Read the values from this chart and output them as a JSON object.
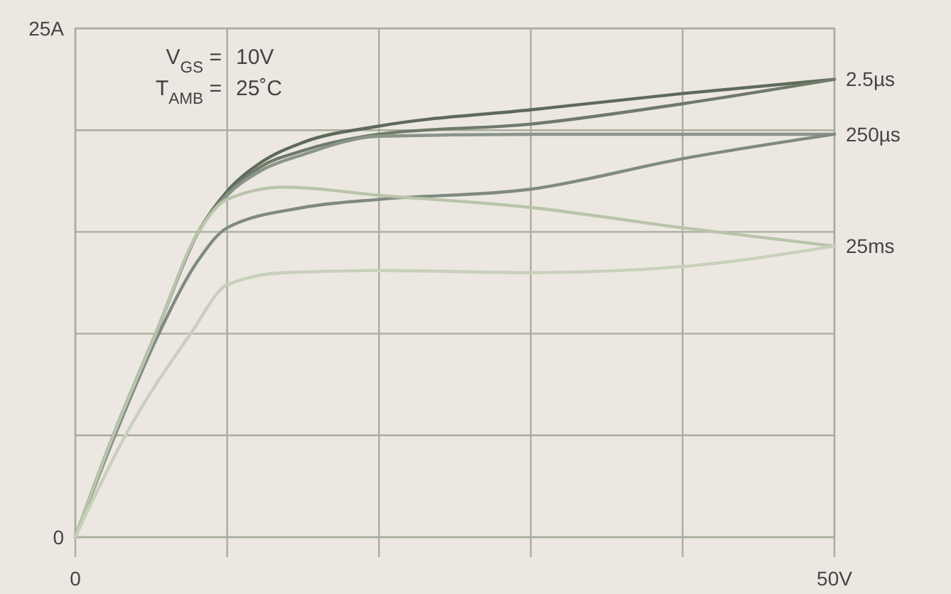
{
  "chart_data": {
    "type": "line",
    "xlim": [
      0,
      50
    ],
    "ylim": [
      0,
      25
    ],
    "xticks": [
      0,
      {
        "value": 10,
        "label": null
      },
      {
        "value": 20,
        "label": null
      },
      {
        "value": 30,
        "label": null
      },
      {
        "value": 40,
        "label": null
      },
      {
        "value": 50,
        "label": "50V"
      }
    ],
    "yticks": [
      0,
      {
        "value": 5,
        "label": null
      },
      {
        "value": 10,
        "label": null
      },
      {
        "value": 15,
        "label": null
      },
      {
        "value": 20,
        "label": null
      },
      {
        "value": 25,
        "label": "25A"
      }
    ],
    "grid": true,
    "marker": "none",
    "line_style": "solid",
    "annotations": [
      "V$_{GS}$ = 10V",
      "T$_{AMB}$ = 25˚C"
    ],
    "series": [
      {
        "name": "2.5µs",
        "color": "#5e6a58",
        "x": [
          0,
          2.5,
          5.3,
          8.1,
          10,
          12.2,
          15,
          20,
          30,
          40,
          50
        ],
        "values": [
          0,
          5,
          10,
          15,
          17,
          18.4,
          19.4,
          20.2,
          21,
          21.8,
          22.5
        ]
      },
      {
        "color": "#6f7a68",
        "x": [
          0,
          2.5,
          5.3,
          8.1,
          10,
          12.2,
          15,
          20,
          30,
          40,
          50
        ],
        "values": [
          0,
          5,
          10,
          15,
          16.9,
          18.2,
          19,
          19.8,
          20.3,
          21.3,
          22.5
        ]
      },
      {
        "name": "250µs",
        "color": "#8a948a",
        "x": [
          0,
          2.5,
          5.3,
          8.1,
          10,
          12.2,
          15,
          20,
          30,
          40,
          50
        ],
        "values": [
          0,
          5,
          10,
          15,
          16.8,
          18,
          18.8,
          19.7,
          19.8,
          19.8,
          19.8
        ]
      },
      {
        "color": "#7f8a80",
        "x": [
          0,
          2.5,
          5.5,
          8,
          10,
          15,
          20,
          30,
          40,
          50
        ],
        "values": [
          0,
          4.8,
          10,
          13.5,
          15.2,
          16.2,
          16.6,
          17.1,
          18.6,
          19.8
        ]
      },
      {
        "name": "25ms",
        "color": "#b9c4aa",
        "x": [
          0,
          2.5,
          5.3,
          8.1,
          10,
          13.8,
          20,
          30,
          40,
          50
        ],
        "values": [
          0,
          5,
          10,
          15,
          16.6,
          17.2,
          16.8,
          16.2,
          15.2,
          14.3
        ]
      },
      {
        "color": "#c8d0bc",
        "x": [
          0,
          3.3,
          7.6,
          10,
          13.8,
          20,
          30,
          40,
          50
        ],
        "values": [
          0,
          5,
          10,
          12.4,
          13,
          13.1,
          13,
          13.3,
          14.3
        ]
      }
    ]
  }
}
